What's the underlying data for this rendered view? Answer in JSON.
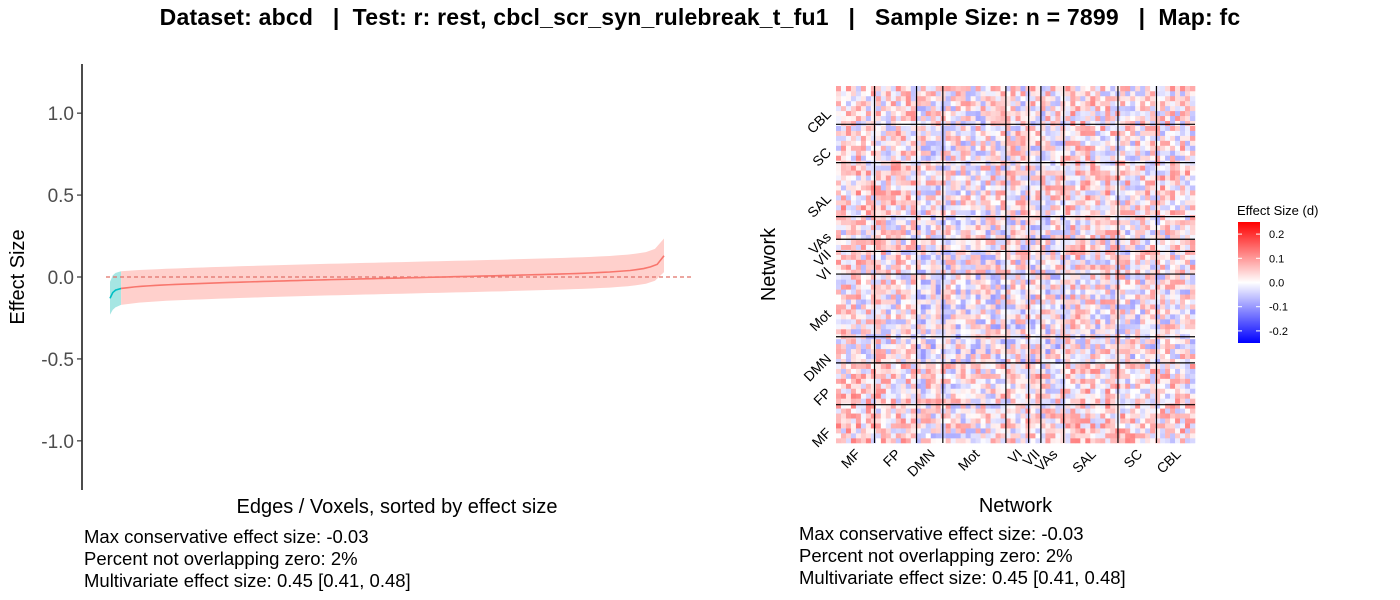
{
  "title": "Dataset: abcd   |  Test: r: rest, cbcl_scr_syn_rulebreak_t_fu1   |   Sample Size: n = 7899   |  Map: fc",
  "chart_data": [
    {
      "type": "line",
      "title": "",
      "xlabel": "Edges / Voxels, sorted by effect size",
      "ylabel": "Effect Size",
      "ylim": [
        -1.3,
        1.3
      ],
      "yticks": [
        1.0,
        0.5,
        0.0,
        -0.5,
        -1.0
      ],
      "ytick_labels": [
        "1.0",
        "0.5",
        "0.0",
        "-0.5",
        "-1.0"
      ],
      "x": [
        0,
        0.005,
        0.01,
        0.02,
        0.05,
        0.1,
        0.2,
        0.3,
        0.4,
        0.5,
        0.6,
        0.7,
        0.8,
        0.85,
        0.9,
        0.94,
        0.97,
        0.99,
        1.0
      ],
      "series": [
        {
          "values": [
            -0.13,
            -0.095,
            -0.08,
            -0.07,
            -0.058,
            -0.048,
            -0.035,
            -0.025,
            -0.016,
            -0.008,
            0.0,
            0.008,
            0.017,
            0.022,
            0.03,
            0.04,
            0.055,
            0.08,
            0.13
          ],
          "lower": [
            -0.23,
            -0.2,
            -0.185,
            -0.17,
            -0.157,
            -0.145,
            -0.132,
            -0.121,
            -0.112,
            -0.104,
            -0.096,
            -0.088,
            -0.078,
            -0.073,
            -0.065,
            -0.055,
            -0.04,
            -0.015,
            0.03
          ],
          "upper": [
            -0.03,
            0.01,
            0.025,
            0.035,
            0.042,
            0.05,
            0.062,
            0.072,
            0.081,
            0.089,
            0.097,
            0.105,
            0.115,
            0.12,
            0.128,
            0.138,
            0.153,
            0.18,
            0.235
          ]
        }
      ],
      "overlap_zero_fraction": 0.02,
      "reference_line": 0,
      "colors": {
        "line": "#f8766d",
        "ribbon": "#ffd0cc",
        "line_nonoverlap": "#00bfc4",
        "ribbon_nonoverlap": "#a6e6e3",
        "zero_line": "#e07068"
      },
      "grid": false
    },
    {
      "type": "heatmap",
      "title": "",
      "xlabel": "Network",
      "ylabel": "Network",
      "x_networks": [
        "MF",
        "FP",
        "DMN",
        "Mot",
        "VI",
        "VII",
        "VAs",
        "SAL",
        "SC",
        "CBL"
      ],
      "y_networks": [
        "CBL",
        "SC",
        "SAL",
        "VAs",
        "VII",
        "VI",
        "Mot",
        "DMN",
        "FP",
        "MF"
      ],
      "network_fractions": [
        0.11,
        0.12,
        0.075,
        0.18,
        0.065,
        0.035,
        0.065,
        0.155,
        0.11,
        0.11
      ],
      "legend": {
        "title": "Effect Size (d)",
        "ticks": [
          0.2,
          0.1,
          0.0,
          -0.1,
          -0.2
        ],
        "tick_labels": [
          "0.2",
          "0.1",
          "0.0",
          "-0.1",
          "-0.2"
        ],
        "range": [
          -0.25,
          0.25
        ],
        "colors": {
          "high": "#ff0000",
          "mid": "#ffffff",
          "low": "#0000ff"
        }
      }
    }
  ],
  "stats_left": [
    "Max conservative effect size: -0.03",
    "Percent not overlapping zero: 2%",
    "Multivariate effect size: 0.45 [0.41, 0.48]"
  ],
  "stats_right": [
    "Max conservative effect size: -0.03",
    "Percent not overlapping zero: 2%",
    "Multivariate effect size: 0.45 [0.41, 0.48]"
  ]
}
